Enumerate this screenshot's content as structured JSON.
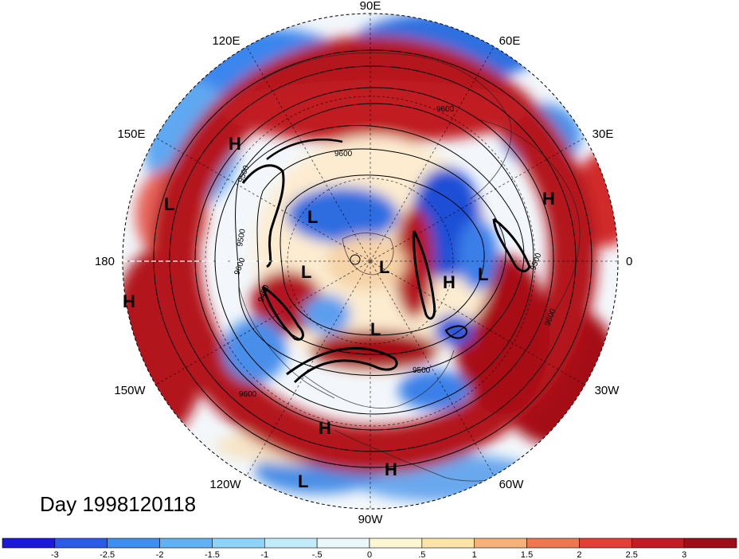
{
  "map": {
    "longitude_labels": [
      "90E",
      "60E",
      "30E",
      "0",
      "30W",
      "60W",
      "90W",
      "120W",
      "150W",
      "180",
      "150E",
      "120E"
    ],
    "pressure_centers": [
      {
        "type": "H",
        "name": "high-center-siberia"
      },
      {
        "type": "L",
        "name": "low-center-west-pacific"
      },
      {
        "type": "L",
        "name": "low-center-east-siberia"
      },
      {
        "type": "H",
        "name": "high-center-europe"
      },
      {
        "type": "L",
        "name": "low-center-chukchi"
      },
      {
        "type": "L",
        "name": "low-center-pole"
      },
      {
        "type": "H",
        "name": "high-center-atlantic"
      },
      {
        "type": "L",
        "name": "low-center-north-atlantic"
      },
      {
        "type": "H",
        "name": "high-center-east-pacific"
      },
      {
        "type": "L",
        "name": "low-center-hudson"
      },
      {
        "type": "H",
        "name": "high-center-us-south"
      },
      {
        "type": "L",
        "name": "low-center-pacific-south"
      },
      {
        "type": "H",
        "name": "high-center-caribbean"
      }
    ],
    "contour_labels": [
      "9600",
      "9600",
      "9500",
      "9600",
      "9500",
      "9500",
      "9600",
      "9600",
      "9500",
      "9400"
    ]
  },
  "date_label": "Day 1998120118",
  "colorbar": {
    "colors": [
      "#1a1ad8",
      "#2a5ae6",
      "#3c8ef0",
      "#5fb2f6",
      "#8dd3fa",
      "#c3ecfb",
      "#eaf8fb",
      "#fdf6d2",
      "#fce3a6",
      "#f6b07a",
      "#ee7651",
      "#e23f36",
      "#c31c22",
      "#9e0d18"
    ],
    "tick_labels": [
      "-3",
      "-2.5",
      "-2",
      "-1.5",
      "-1",
      "-.5",
      "0",
      ".5",
      "1",
      "1.5",
      "2",
      "2.5",
      "3"
    ]
  }
}
